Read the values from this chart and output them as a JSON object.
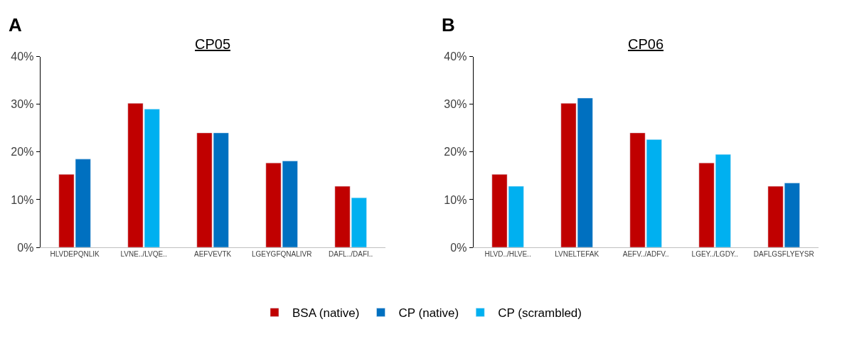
{
  "chart_data": [
    {
      "type": "bar",
      "title": "CP05",
      "annotations": [
        "A"
      ],
      "categories": [
        "HLVDEPQNLIK",
        "LVNE../LVQE..",
        "AEFVEVTK",
        "LGEYGFQNALIVR",
        "DAFL../DAFI.."
      ],
      "series": [
        {
          "name": "BSA (native)",
          "color": "#c00000",
          "values": [
            15.3,
            30.2,
            24.0,
            17.7,
            12.8
          ]
        },
        {
          "name": "CP (native)",
          "color": "#0070c0",
          "values": [
            18.5,
            null,
            24.0,
            18.1,
            null
          ]
        },
        {
          "name": "CP (scrambled)",
          "color": "#00b0f0",
          "values": [
            null,
            29.0,
            null,
            null,
            10.4
          ]
        }
      ],
      "ylim": [
        0,
        40
      ],
      "yticks": [
        {
          "value": 0,
          "label": "0%"
        },
        {
          "value": 10,
          "label": "10%"
        },
        {
          "value": 20,
          "label": "20%"
        },
        {
          "value": 30,
          "label": "30%"
        },
        {
          "value": 40,
          "label": "40%"
        }
      ],
      "legend": "bottom"
    },
    {
      "type": "bar",
      "title": "CP06",
      "annotations": [
        "B"
      ],
      "categories": [
        "HLVD../HLVE..",
        "LVNELTEFAK",
        "AEFV../ADFV..",
        "LGEY../LGDY..",
        "DAFLGSFLYEYSR"
      ],
      "series": [
        {
          "name": "BSA (native)",
          "color": "#c00000",
          "values": [
            15.3,
            30.2,
            24.0,
            17.7,
            12.8
          ]
        },
        {
          "name": "CP (native)",
          "color": "#0070c0",
          "values": [
            null,
            31.3,
            null,
            null,
            13.5
          ]
        },
        {
          "name": "CP (scrambled)",
          "color": "#00b0f0",
          "values": [
            12.8,
            null,
            22.6,
            19.5,
            null
          ]
        }
      ],
      "ylim": [
        0,
        40
      ],
      "yticks": [
        {
          "value": 0,
          "label": "0%"
        },
        {
          "value": 10,
          "label": "10%"
        },
        {
          "value": 20,
          "label": "20%"
        },
        {
          "value": 30,
          "label": "30%"
        },
        {
          "value": 40,
          "label": "40%"
        }
      ],
      "legend": "bottom"
    }
  ]
}
